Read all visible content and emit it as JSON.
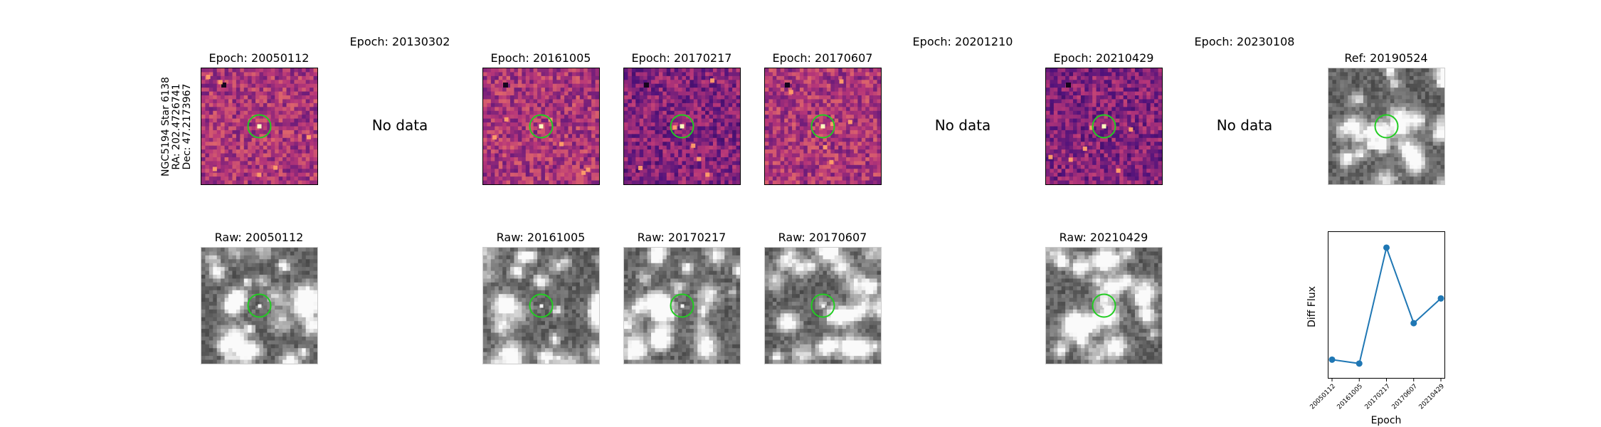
{
  "row_label": {
    "lines": [
      "NGC5194 Star 6138",
      "RA: 202.4726741",
      "Dec: 47.2173967"
    ]
  },
  "diff_panels": [
    {
      "title": "Epoch: 20050112",
      "has_data": true,
      "seed": 11
    },
    {
      "title": "Epoch: 20130302",
      "has_data": false,
      "message": "No data"
    },
    {
      "title": "Epoch: 20161005",
      "has_data": true,
      "seed": 23
    },
    {
      "title": "Epoch: 20170217",
      "has_data": true,
      "seed": 37
    },
    {
      "title": "Epoch: 20170607",
      "has_data": true,
      "seed": 41
    },
    {
      "title": "Epoch: 20201210",
      "has_data": false,
      "message": "No data"
    },
    {
      "title": "Epoch: 20210429",
      "has_data": true,
      "seed": 53
    },
    {
      "title": "Epoch: 20230108",
      "has_data": false,
      "message": "No data"
    }
  ],
  "ref_panel": {
    "title": "Ref: 20190524",
    "seed": 71
  },
  "raw_panels": [
    {
      "title": "Raw: 20050112",
      "seed": 101
    },
    {
      "title": "Raw: 20161005",
      "seed": 113
    },
    {
      "title": "Raw: 20170217",
      "seed": 127
    },
    {
      "title": "Raw: 20170607",
      "seed": 131
    },
    {
      "title": "Raw: 20210429",
      "seed": 149
    }
  ],
  "colors": {
    "circle": "#22cc22",
    "line": "#1f77b4"
  },
  "chart_data": {
    "type": "line",
    "x": [
      "20050112",
      "20161005",
      "20170217",
      "20170607",
      "20210429"
    ],
    "values": [
      0.08,
      0.05,
      0.94,
      0.36,
      0.55
    ],
    "xlabel": "Epoch",
    "ylabel": "Diff Flux",
    "ylim": [
      0,
      1
    ],
    "grid": false
  }
}
